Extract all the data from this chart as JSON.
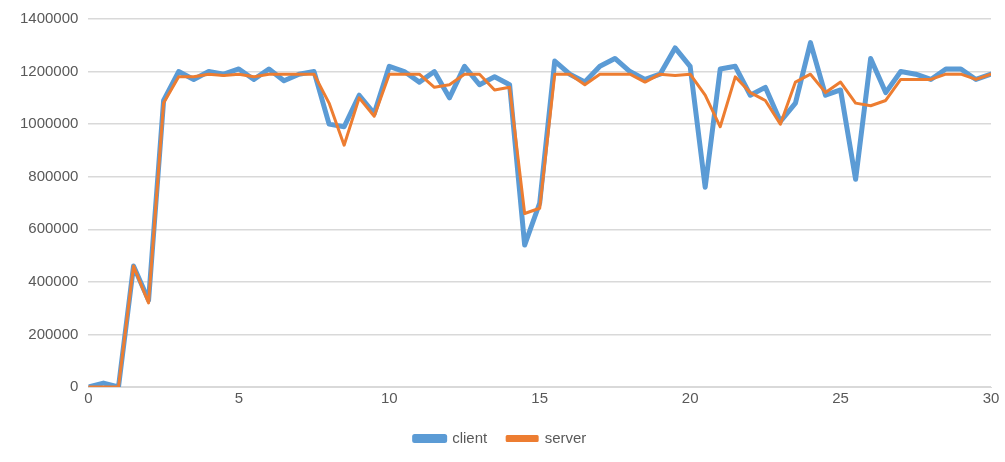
{
  "chart_data": {
    "type": "line",
    "x": [
      0,
      0.5,
      1,
      1.5,
      2,
      2.5,
      3,
      3.5,
      4,
      4.5,
      5,
      5.5,
      6,
      6.5,
      7,
      7.5,
      8,
      8.5,
      9,
      9.5,
      10,
      10.5,
      11,
      11.5,
      12,
      12.5,
      13,
      13.5,
      14,
      14.5,
      15,
      15.5,
      16,
      16.5,
      17,
      17.5,
      18,
      18.5,
      19,
      19.5,
      20,
      20.5,
      21,
      21.5,
      22,
      22.5,
      23,
      23.5,
      24,
      24.5,
      25,
      25.5,
      26,
      26.5,
      27,
      27.5,
      28,
      28.5,
      29,
      29.5,
      30
    ],
    "series": [
      {
        "name": "client",
        "color": "#5b9bd5",
        "values": [
          0,
          15000,
          0,
          460000,
          330000,
          1090000,
          1200000,
          1170000,
          1200000,
          1190000,
          1210000,
          1170000,
          1210000,
          1165000,
          1190000,
          1200000,
          1000000,
          990000,
          1110000,
          1040000,
          1220000,
          1200000,
          1160000,
          1200000,
          1100000,
          1220000,
          1150000,
          1180000,
          1150000,
          540000,
          700000,
          1240000,
          1190000,
          1160000,
          1220000,
          1250000,
          1200000,
          1170000,
          1190000,
          1290000,
          1220000,
          760000,
          1210000,
          1220000,
          1110000,
          1140000,
          1010000,
          1080000,
          1310000,
          1110000,
          1130000,
          790000,
          1250000,
          1120000,
          1200000,
          1190000,
          1170000,
          1210000,
          1210000,
          1170000,
          1190000
        ]
      },
      {
        "name": "server",
        "color": "#ed7d31",
        "values": [
          0,
          0,
          0,
          460000,
          320000,
          1080000,
          1180000,
          1180000,
          1190000,
          1185000,
          1190000,
          1180000,
          1190000,
          1190000,
          1190000,
          1190000,
          1080000,
          920000,
          1100000,
          1030000,
          1190000,
          1190000,
          1190000,
          1140000,
          1150000,
          1190000,
          1190000,
          1130000,
          1140000,
          660000,
          680000,
          1190000,
          1190000,
          1150000,
          1190000,
          1190000,
          1190000,
          1160000,
          1190000,
          1185000,
          1190000,
          1110000,
          990000,
          1180000,
          1120000,
          1090000,
          1000000,
          1160000,
          1190000,
          1120000,
          1160000,
          1080000,
          1070000,
          1090000,
          1170000,
          1170000,
          1170000,
          1190000,
          1190000,
          1170000,
          1190000
        ]
      }
    ],
    "xlim": [
      0,
      30
    ],
    "xticks": [
      0,
      5,
      10,
      15,
      20,
      25,
      30
    ],
    "ylim": [
      0,
      1400000
    ],
    "yticks": [
      0,
      200000,
      400000,
      600000,
      800000,
      1000000,
      1200000,
      1400000
    ],
    "grid": "y",
    "legend": "bottom",
    "marker": "none",
    "line_style": "solid"
  }
}
